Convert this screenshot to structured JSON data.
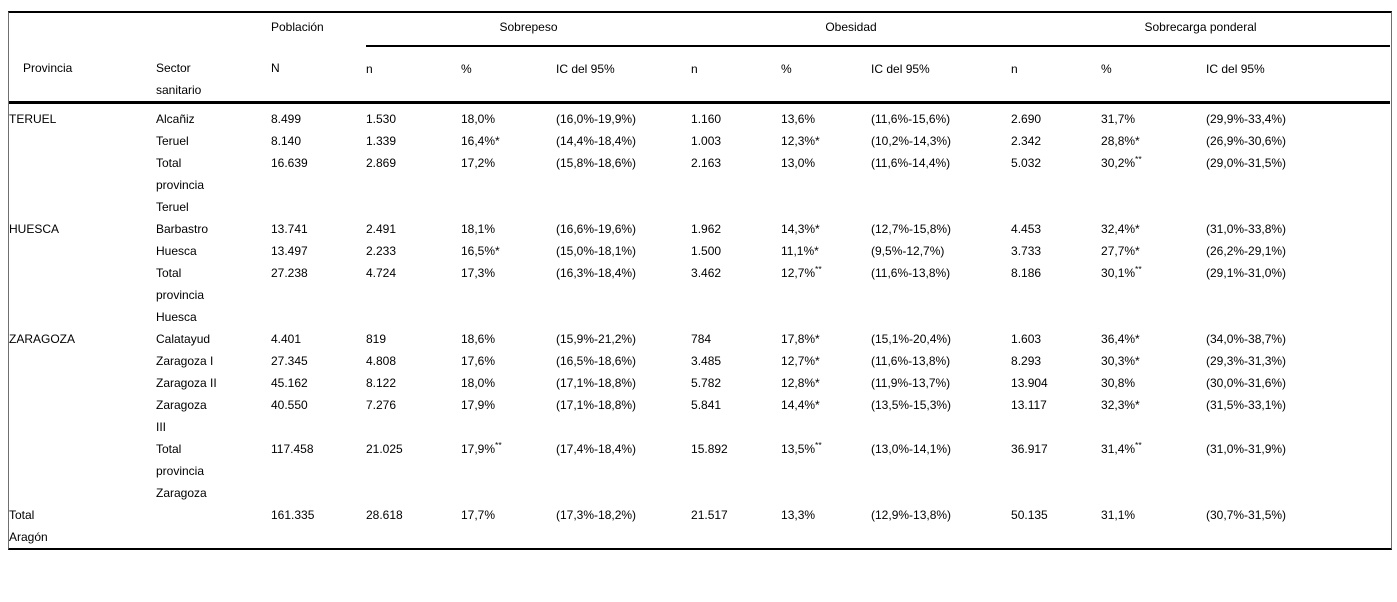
{
  "header": {
    "provincia": "Provincia",
    "sector": "Sector sanitario",
    "poblacion": "Población",
    "n_cap": "N",
    "groups": [
      {
        "label": "Sobrepeso"
      },
      {
        "label": "Obesidad"
      },
      {
        "label": "Sobrecarga ponderal"
      }
    ],
    "sub": {
      "n": "n",
      "pct": "%",
      "ic": "IC del 95%"
    }
  },
  "body": {
    "groups": [
      {
        "provincia": "TERUEL",
        "rows": [
          {
            "sector": "Alcañiz",
            "N": "8.499",
            "sob": {
              "n": "1.530",
              "pct": "18,0%",
              "ic": "(16,0%-19,9%)"
            },
            "obe": {
              "n": "1.160",
              "pct": "13,6%",
              "ic": "(11,6%-15,6%)"
            },
            "scp": {
              "n": "2.690",
              "pct": "31,7%",
              "ic": "(29,9%-33,4%)"
            }
          },
          {
            "sector": "Teruel",
            "N": "8.140",
            "sob": {
              "n": "1.339",
              "pct": "16,4%*",
              "ic": "(14,4%-18,4%)"
            },
            "obe": {
              "n": "1.003",
              "pct": "12,3%*",
              "ic": "(10,2%-14,3%)"
            },
            "scp": {
              "n": "2.342",
              "pct": "28,8%*",
              "ic": "(26,9%-30,6%)"
            }
          },
          {
            "sector": "Total provincia Teruel",
            "N": "16.639",
            "sob": {
              "n": "2.869",
              "pct": "17,2%",
              "ic": "(15,8%-18,6%)"
            },
            "obe": {
              "n": "2.163",
              "pct": "13,0%",
              "ic": "(11,6%-14,4%)"
            },
            "scp": {
              "n": "5.032",
              "pct": "30,2%**",
              "ic": "(29,0%-31,5%)"
            }
          }
        ]
      },
      {
        "provincia": "HUESCA",
        "rows": [
          {
            "sector": "Barbastro",
            "N": "13.741",
            "sob": {
              "n": "2.491",
              "pct": "18,1%",
              "ic": "(16,6%-19,6%)"
            },
            "obe": {
              "n": "1.962",
              "pct": "14,3%*",
              "ic": "(12,7%-15,8%)"
            },
            "scp": {
              "n": "4.453",
              "pct": "32,4%*",
              "ic": "(31,0%-33,8%)"
            }
          },
          {
            "sector": "Huesca",
            "N": "13.497",
            "sob": {
              "n": "2.233",
              "pct": "16,5%*",
              "ic": "(15,0%-18,1%)"
            },
            "obe": {
              "n": "1.500",
              "pct": "11,1%*",
              "ic": "(9,5%-12,7%)"
            },
            "scp": {
              "n": "3.733",
              "pct": "27,7%*",
              "ic": "(26,2%-29,1%)"
            }
          },
          {
            "sector": "Total provincia Huesca",
            "N": "27.238",
            "sob": {
              "n": "4.724",
              "pct": "17,3%",
              "ic": "(16,3%-18,4%)"
            },
            "obe": {
              "n": "3.462",
              "pct": "12,7%**",
              "ic": "(11,6%-13,8%)"
            },
            "scp": {
              "n": "8.186",
              "pct": "30,1%**",
              "ic": "(29,1%-31,0%)"
            }
          }
        ]
      },
      {
        "provincia": "ZARAGOZA",
        "rows": [
          {
            "sector": "Calatayud",
            "N": "4.401",
            "sob": {
              "n": "819",
              "pct": "18,6%",
              "ic": "(15,9%-21,2%)"
            },
            "obe": {
              "n": "784",
              "pct": "17,8%*",
              "ic": "(15,1%-20,4%)"
            },
            "scp": {
              "n": "1.603",
              "pct": "36,4%*",
              "ic": "(34,0%-38,7%)"
            }
          },
          {
            "sector": "Zaragoza I",
            "N": "27.345",
            "sob": {
              "n": "4.808",
              "pct": "17,6%",
              "ic": "(16,5%-18,6%)"
            },
            "obe": {
              "n": "3.485",
              "pct": "12,7%*",
              "ic": "(11,6%-13,8%)"
            },
            "scp": {
              "n": "8.293",
              "pct": "30,3%*",
              "ic": "(29,3%-31,3%)"
            }
          },
          {
            "sector": "Zaragoza II",
            "N": "45.162",
            "sob": {
              "n": "8.122",
              "pct": "18,0%",
              "ic": "(17,1%-18,8%)"
            },
            "obe": {
              "n": "5.782",
              "pct": "12,8%*",
              "ic": "(11,9%-13,7%)"
            },
            "scp": {
              "n": "13.904",
              "pct": "30,8%",
              "ic": "(30,0%-31,6%)"
            }
          },
          {
            "sector": "Zaragoza III",
            "N": "40.550",
            "sob": {
              "n": "7.276",
              "pct": "17,9%",
              "ic": "(17,1%-18,8%)"
            },
            "obe": {
              "n": "5.841",
              "pct": "14,4%*",
              "ic": "(13,5%-15,3%)"
            },
            "scp": {
              "n": "13.117",
              "pct": "32,3%*",
              "ic": "(31,5%-33,1%)"
            }
          },
          {
            "sector": "Total provincia Zaragoza",
            "N": "117.458",
            "sob": {
              "n": "21.025",
              "pct": "17,9%**",
              "ic": "(17,4%-18,4%)"
            },
            "obe": {
              "n": "15.892",
              "pct": "13,5%**",
              "ic": "(13,0%-14,1%)"
            },
            "scp": {
              "n": "36.917",
              "pct": "31,4%**",
              "ic": "(31,0%-31,9%)"
            }
          }
        ]
      }
    ],
    "total": {
      "provincia": "Total Aragón",
      "sector": "",
      "N": "161.335",
      "sob": {
        "n": "28.618",
        "pct": "17,7%",
        "ic": "(17,3%-18,2%)"
      },
      "obe": {
        "n": "21.517",
        "pct": "13,3%",
        "ic": "(12,9%-13,8%)"
      },
      "scp": {
        "n": "50.135",
        "pct": "31,1%",
        "ic": "(30,7%-31,5%)"
      }
    }
  }
}
